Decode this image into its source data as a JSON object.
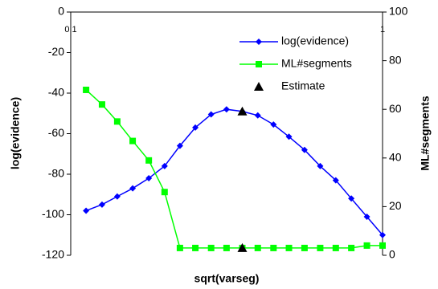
{
  "chart_data": {
    "type": "line",
    "x_label": "sqrt(varseg)",
    "y_label": "log(evidence)",
    "y2_label": "ML#segments",
    "xscale": "log",
    "xlim": [
      0.1,
      1
    ],
    "xticks": [
      0.1,
      1
    ],
    "ylim": [
      -120,
      0
    ],
    "yticks": [
      -120,
      -100,
      -80,
      -60,
      -40,
      -20,
      0
    ],
    "y2lim": [
      0,
      100
    ],
    "y2ticks": [
      0,
      20,
      40,
      60,
      80,
      100
    ],
    "legend": "upper right",
    "x": [
      0.112,
      0.126,
      0.141,
      0.158,
      0.178,
      0.2,
      0.224,
      0.251,
      0.282,
      0.316,
      0.355,
      0.398,
      0.447,
      0.501,
      0.562,
      0.631,
      0.708,
      0.794,
      0.891,
      1.0
    ],
    "series": [
      {
        "name": "log(evidence)",
        "color": "#0000ff",
        "marker": "diamond",
        "axis": "y",
        "values": [
          -98,
          -95,
          -91,
          -87,
          -82,
          -76,
          -66,
          -57,
          -50.5,
          -48,
          -49,
          -51,
          -55.5,
          -61.5,
          -68,
          -76,
          -83,
          -92,
          -101,
          -110
        ]
      },
      {
        "name": "ML#segments",
        "color": "#00ff00",
        "marker": "square",
        "axis": "y2",
        "values": [
          68,
          62,
          55,
          47,
          39,
          26,
          3,
          3,
          3,
          3,
          3,
          3,
          3,
          3,
          3,
          3,
          3,
          3,
          4,
          4
        ]
      },
      {
        "name": "Estimate",
        "color": "#000000",
        "marker": "triangle",
        "x": [
          0.355,
          0.355
        ],
        "axes": [
          "y",
          "y2"
        ],
        "values": [
          -49,
          3
        ]
      }
    ]
  }
}
